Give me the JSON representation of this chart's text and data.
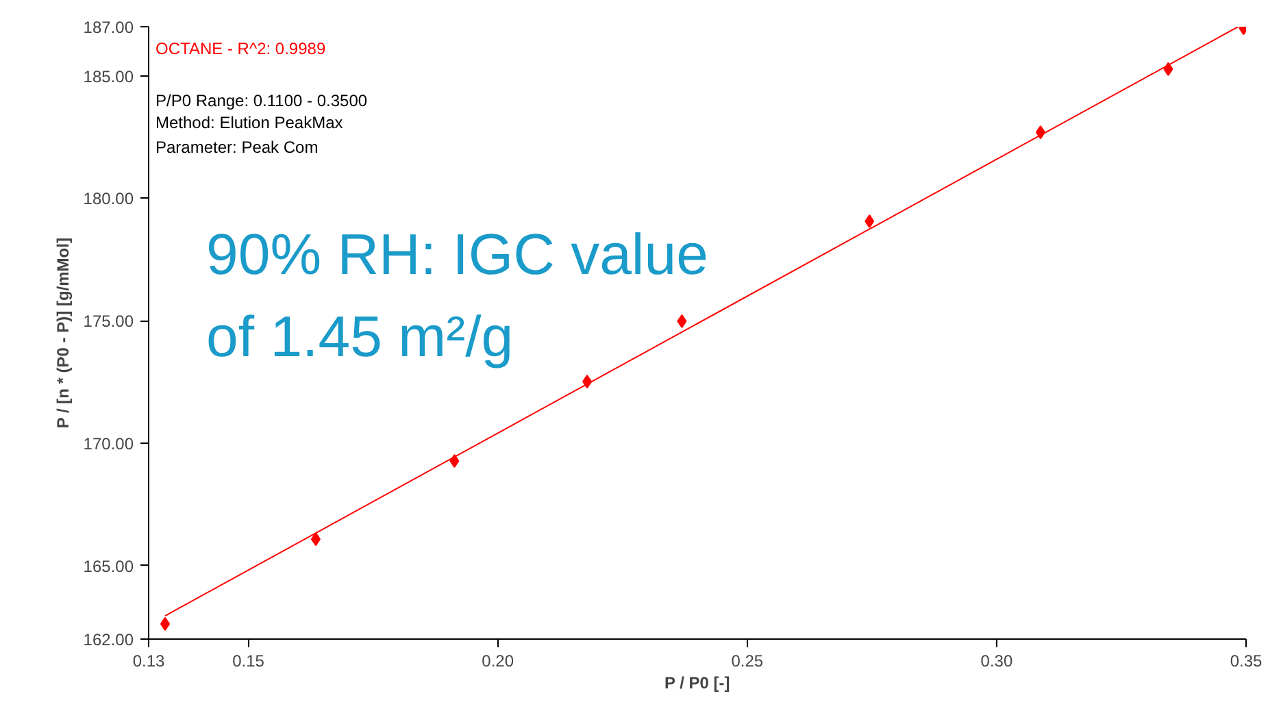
{
  "chart_data": {
    "type": "scatter",
    "xlabel": "P / P0 [-]",
    "ylabel": "P / [n * (P0 - P)] [g/mMol]",
    "series": [
      {
        "color": "#ff0000",
        "marker": "diamond",
        "x": [
          0.1333,
          0.1635,
          0.1913,
          0.2179,
          0.2369,
          0.2745,
          0.3088,
          0.3344,
          0.3495
        ],
        "values": [
          162.62,
          166.08,
          169.27,
          172.51,
          174.98,
          179.06,
          182.69,
          185.27,
          186.94
        ]
      },
      {
        "type": "line",
        "color": "#ff0000",
        "marker": "none",
        "x": [
          0.1333,
          0.3484
        ],
        "values": [
          162.95,
          187.0
        ]
      }
    ],
    "xlim": [
      0.13,
      0.35
    ],
    "ylim": [
      162,
      187
    ],
    "xticks": [
      0.13,
      0.15,
      {
        "value": 0.2,
        "label": "0.20"
      },
      0.25,
      {
        "value": 0.3,
        "label": "0.30"
      },
      0.35
    ],
    "yticks": [
      {
        "value": 162,
        "label": "162.00"
      },
      {
        "value": 165,
        "label": "165.00"
      },
      {
        "value": 170,
        "label": "170.00"
      },
      {
        "value": 175,
        "label": "175.00"
      },
      {
        "value": 180,
        "label": "180.00"
      },
      {
        "value": 185,
        "label": "185.00"
      },
      {
        "value": 187,
        "label": "187.00"
      }
    ],
    "grid": false,
    "annotations": [
      "OCTANE - R^2: 0.9989",
      "P/P0 Range: 0.1100 - 0.3500",
      "Method: Elution PeakMax",
      "Parameter: Peak Com",
      "90% RH: IGC value",
      "of 1.45 m²/g"
    ]
  }
}
